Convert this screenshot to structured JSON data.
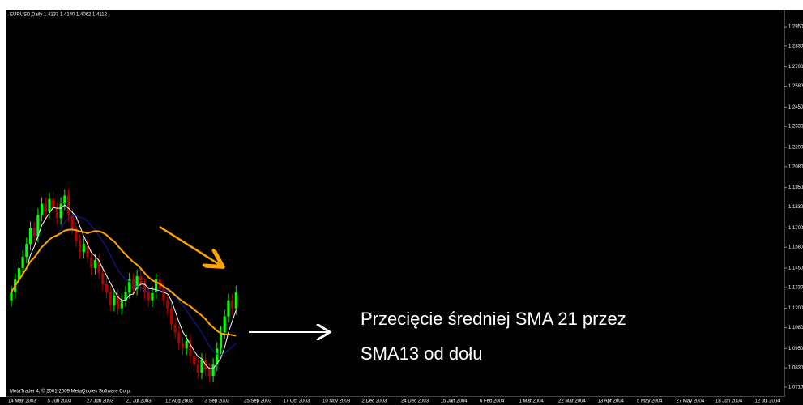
{
  "chart_data": {
    "type": "candlestick",
    "header": "EURUSD,Daily  1.4137 1.4140 1.4062 1.4112",
    "footer": "MetaTrader 4, © 2001-2009 MetaQuotes Software Corp.",
    "annotation": [
      "Przecięcie średniej SMA 21 przez",
      "SMA13 od dołu"
    ],
    "up_color": "#00ff00",
    "down_color": "#b00000",
    "indicators": [
      {
        "period": 5,
        "color": "#ffffff"
      },
      {
        "period": 13,
        "color": "#1a1aa8"
      },
      {
        "period": 21,
        "color": "#ffa500"
      }
    ],
    "ylim": [
      1.071,
      1.295
    ],
    "yticks": [
      {
        "value": 1.295,
        "label": "1.2950"
      },
      {
        "value": 1.283,
        "label": "1.2830"
      },
      {
        "value": 1.27,
        "label": "1.2700"
      },
      {
        "value": 1.258,
        "label": "1.2580"
      },
      {
        "value": 1.245,
        "label": "1.2450"
      },
      {
        "value": 1.233,
        "label": "1.2330"
      },
      {
        "value": 1.22,
        "label": "1.2200"
      },
      {
        "value": 1.208,
        "label": "1.2080"
      },
      {
        "value": 1.195,
        "label": "1.1950"
      },
      {
        "value": 1.183,
        "label": "1.1830"
      },
      {
        "value": 1.17,
        "label": "1.1700"
      },
      {
        "value": 1.158,
        "label": "1.1580"
      },
      {
        "value": 1.145,
        "label": "1.1450"
      },
      {
        "value": 1.133,
        "label": "1.1330"
      },
      {
        "value": 1.12,
        "label": "1.1200"
      },
      {
        "value": 1.108,
        "label": "1.1080"
      },
      {
        "value": 1.095,
        "label": "1.0950"
      },
      {
        "value": 1.083,
        "label": "1.0830"
      },
      {
        "value": 1.071,
        "label": "1.0710"
      }
    ],
    "dates": [
      "14 May 2003",
      "5 Jun 2003",
      "27 Jun 2003",
      "21 Jul 2003",
      "12 Aug 2003",
      "3 Sep 2003",
      "25 Sep 2003",
      "17 Oct 2003",
      "10 Nov 2003",
      "2 Dec 2003",
      "24 Dec 2003",
      "15 Jan 2004",
      "6 Feb 2004",
      "1 Mar 2004",
      "22 Mar 2004",
      "13 Apr 2004",
      "5 May 2004",
      "27 May 2004",
      "18 Jun 2004",
      "12 Jul 2004"
    ],
    "candles": [
      [
        1.125,
        1.134,
        1.121,
        1.13
      ],
      [
        1.13,
        1.142,
        1.126,
        1.138
      ],
      [
        1.138,
        1.149,
        1.134,
        1.145
      ],
      [
        1.145,
        1.156,
        1.141,
        1.152
      ],
      [
        1.152,
        1.164,
        1.148,
        1.16
      ],
      [
        1.16,
        1.174,
        1.156,
        1.17
      ],
      [
        1.17,
        1.174,
        1.161,
        1.165
      ],
      [
        1.165,
        1.182,
        1.161,
        1.178
      ],
      [
        1.178,
        1.189,
        1.174,
        1.185
      ],
      [
        1.185,
        1.189,
        1.176,
        1.18
      ],
      [
        1.18,
        1.192,
        1.176,
        1.188
      ],
      [
        1.188,
        1.192,
        1.178,
        1.182
      ],
      [
        1.182,
        1.186,
        1.172,
        1.176
      ],
      [
        1.176,
        1.189,
        1.172,
        1.185
      ],
      [
        1.185,
        1.194,
        1.181,
        1.19
      ],
      [
        1.19,
        1.194,
        1.174,
        1.178
      ],
      [
        1.178,
        1.182,
        1.166,
        1.17
      ],
      [
        1.17,
        1.174,
        1.158,
        1.162
      ],
      [
        1.162,
        1.166,
        1.151,
        1.155
      ],
      [
        1.155,
        1.164,
        1.151,
        1.16
      ],
      [
        1.16,
        1.164,
        1.148,
        1.152
      ],
      [
        1.152,
        1.156,
        1.141,
        1.145
      ],
      [
        1.145,
        1.154,
        1.141,
        1.15
      ],
      [
        1.15,
        1.154,
        1.138,
        1.142
      ],
      [
        1.142,
        1.146,
        1.131,
        1.135
      ],
      [
        1.135,
        1.139,
        1.126,
        1.13
      ],
      [
        1.13,
        1.134,
        1.118,
        1.122
      ],
      [
        1.122,
        1.132,
        1.118,
        1.128
      ],
      [
        1.128,
        1.132,
        1.116,
        1.12
      ],
      [
        1.12,
        1.129,
        1.116,
        1.125
      ],
      [
        1.125,
        1.134,
        1.121,
        1.13
      ],
      [
        1.13,
        1.142,
        1.126,
        1.138
      ],
      [
        1.138,
        1.142,
        1.128,
        1.132
      ],
      [
        1.132,
        1.144,
        1.128,
        1.14
      ],
      [
        1.14,
        1.144,
        1.131,
        1.135
      ],
      [
        1.135,
        1.139,
        1.126,
        1.13
      ],
      [
        1.13,
        1.134,
        1.121,
        1.125
      ],
      [
        1.125,
        1.134,
        1.121,
        1.13
      ],
      [
        1.13,
        1.142,
        1.126,
        1.138
      ],
      [
        1.138,
        1.142,
        1.128,
        1.132
      ],
      [
        1.132,
        1.136,
        1.121,
        1.125
      ],
      [
        1.125,
        1.129,
        1.116,
        1.12
      ],
      [
        1.12,
        1.124,
        1.106,
        1.11
      ],
      [
        1.11,
        1.114,
        1.101,
        1.105
      ],
      [
        1.105,
        1.109,
        1.094,
        1.098
      ],
      [
        1.098,
        1.102,
        1.091,
        1.095
      ],
      [
        1.095,
        1.104,
        1.091,
        1.1
      ],
      [
        1.1,
        1.104,
        1.086,
        1.09
      ],
      [
        1.09,
        1.094,
        1.081,
        1.085
      ],
      [
        1.085,
        1.089,
        1.076,
        1.08
      ],
      [
        1.08,
        1.092,
        1.076,
        1.088
      ],
      [
        1.088,
        1.092,
        1.078,
        1.082
      ],
      [
        1.082,
        1.086,
        1.074,
        1.078
      ],
      [
        1.078,
        1.089,
        1.074,
        1.085
      ],
      [
        1.085,
        1.099,
        1.081,
        1.095
      ],
      [
        1.095,
        1.109,
        1.091,
        1.105
      ],
      [
        1.105,
        1.119,
        1.101,
        1.115
      ],
      [
        1.115,
        1.129,
        1.111,
        1.125
      ],
      [
        1.125,
        1.129,
        1.116,
        1.12
      ],
      [
        1.12,
        1.134,
        1.116,
        1.13
      ]
    ]
  }
}
